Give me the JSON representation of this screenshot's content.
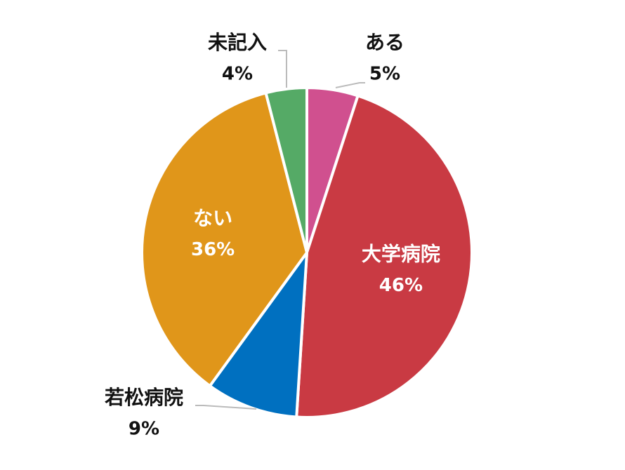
{
  "chart_data": {
    "type": "pie",
    "categories": [
      "ある",
      "大学病院",
      "若松病院",
      "ない",
      "未記入"
    ],
    "values": [
      5,
      46,
      9,
      36,
      4
    ],
    "value_labels": [
      "5%",
      "46%",
      "9%",
      "36%",
      "4%"
    ],
    "colors": [
      "#d0508f",
      "#c93a43",
      "#0070c0",
      "#e0961a",
      "#55aa66"
    ]
  }
}
